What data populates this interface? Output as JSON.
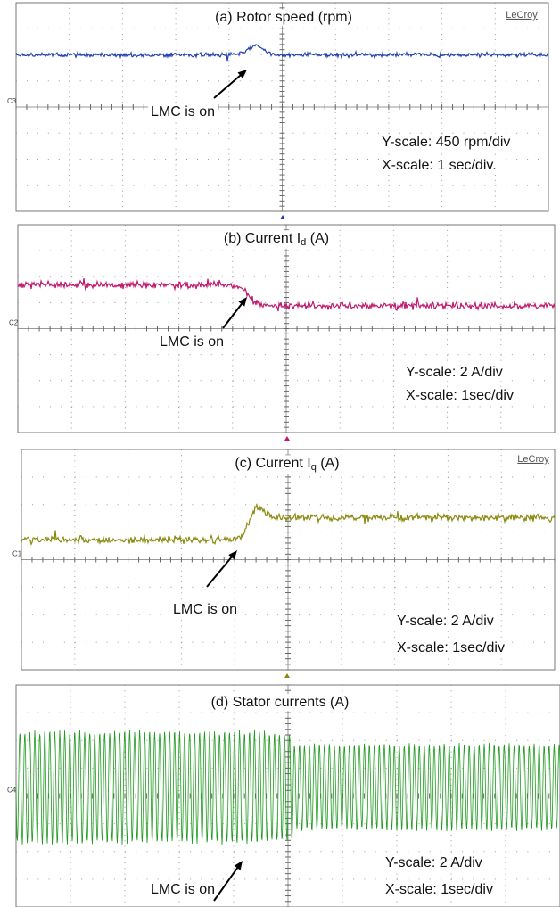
{
  "panels": [
    {
      "title": {
        "text": "(a) Rotor speed (rpm)"
      },
      "annotation": "LMC is on",
      "y_scale": "Y-scale: 450 rpm/div",
      "x_scale": "X-scale: 1 sec/div.",
      "brand": "LeCroy",
      "channel": "C3"
    },
    {
      "title": {
        "text": "(b) Current I",
        "subscript": "d",
        "suffix": " (A)"
      },
      "annotation": "LMC is on",
      "y_scale": "Y-scale: 2 A/div",
      "x_scale": "X-scale: 1sec/div",
      "channel": "C2"
    },
    {
      "title": {
        "text": "(c) Current I",
        "subscript": "q",
        "suffix": " (A)"
      },
      "annotation": "LMC is on",
      "y_scale": "Y-scale: 2 A/div",
      "x_scale": "X-scale: 1sec/div",
      "brand": "LeCroy",
      "channel": "C1"
    },
    {
      "title": {
        "text": "(d) Stator currents (A)"
      },
      "annotation": "LMC is on",
      "y_scale": "Y-scale: 2 A/div",
      "x_scale": "X-scale: 1sec/div",
      "channel": "C4"
    }
  ]
}
